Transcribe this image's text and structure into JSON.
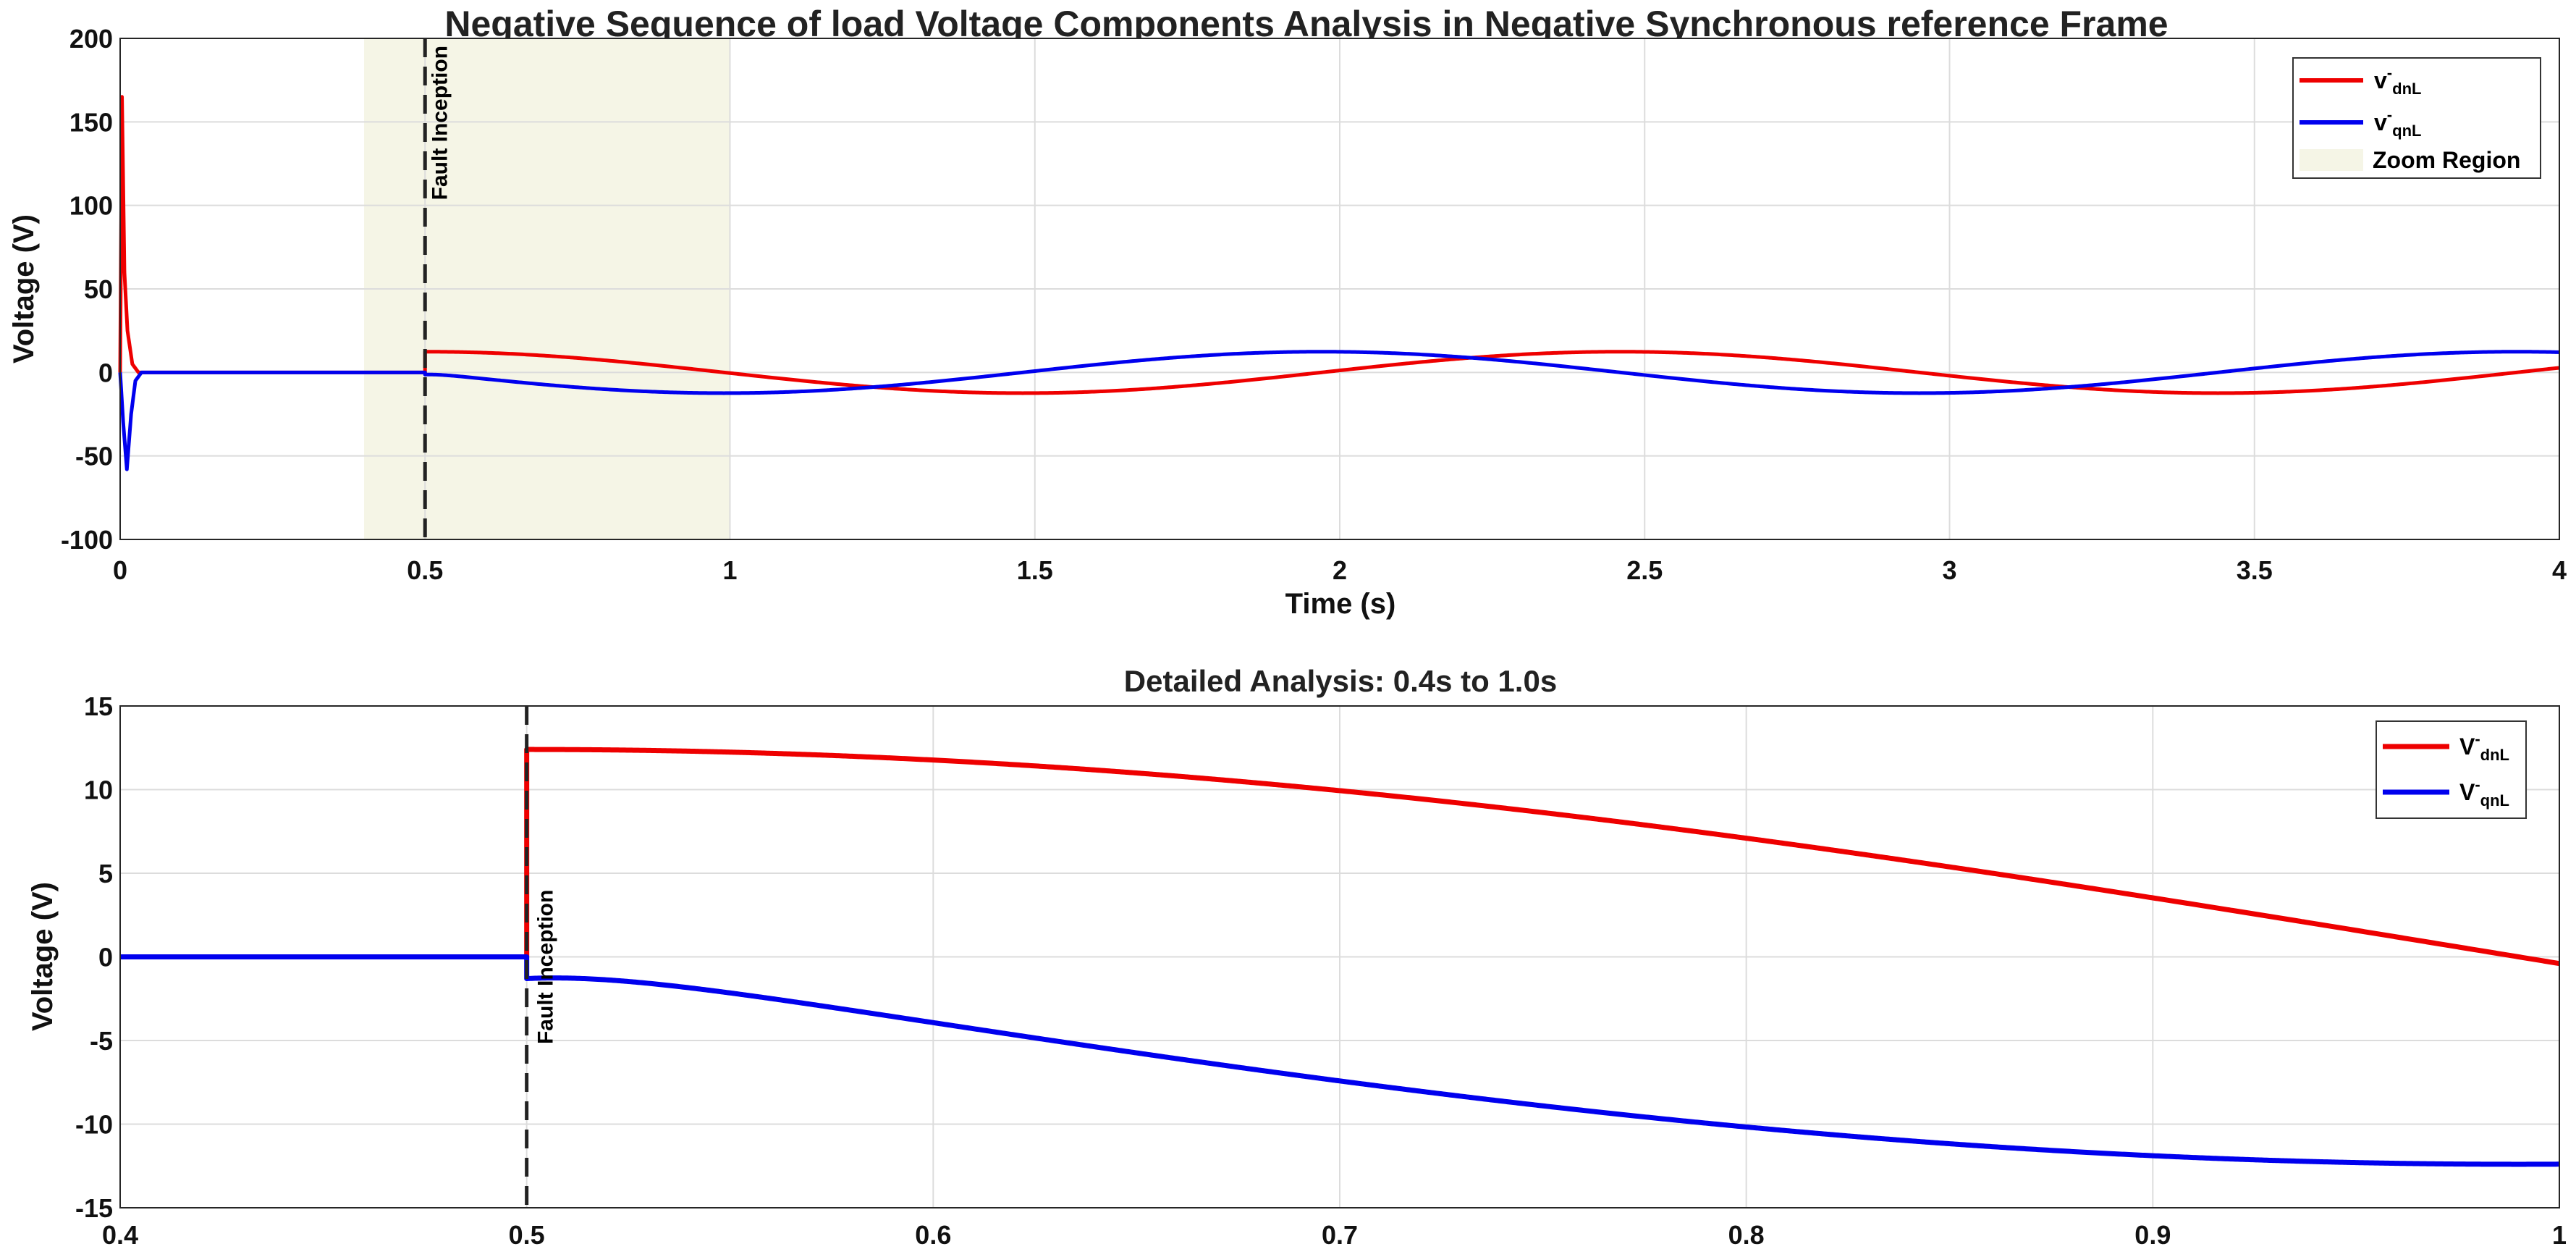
{
  "chart_data": [
    {
      "type": "line",
      "title": "Negative Sequence of load Voltage Components Analysis in Negative Synchronous reference Frame",
      "xlabel": "Time (s)",
      "ylabel": "Voltage (V)",
      "xlim": [
        0,
        4
      ],
      "ylim": [
        -100,
        200
      ],
      "xticks": [
        0,
        0.5,
        1,
        1.5,
        2,
        2.5,
        3,
        3.5,
        4
      ],
      "xtick_labels": [
        "0",
        "0.5",
        "1",
        "1.5",
        "2",
        "2.5",
        "3",
        "3.5",
        "4"
      ],
      "yticks": [
        -100,
        -50,
        0,
        50,
        100,
        150,
        200
      ],
      "ytick_labels": [
        "-100",
        "-50",
        "0",
        "50",
        "100",
        "150",
        "200"
      ],
      "grid": true,
      "legend_position": "top-right",
      "fault_time": 0.5,
      "fault_label": "Fault Inception",
      "zoom_region": [
        0.4,
        1.0
      ],
      "zoom_label": "Zoom Region",
      "steady_state": {
        "amplitude": 12.4,
        "period": 1.96,
        "fault_offset": -1.3
      },
      "series": [
        {
          "name": "v-dnL",
          "label_main": "v",
          "label_sup": "-",
          "label_sub": "dnL",
          "color": "#ee0000",
          "startup_transient": [
            [
              0,
              0
            ],
            [
              0.003,
              165
            ],
            [
              0.007,
              60
            ],
            [
              0.012,
              25
            ],
            [
              0.02,
              5
            ],
            [
              0.03,
              0
            ],
            [
              0.5,
              0
            ]
          ],
          "phase": 0.5,
          "func": "cos"
        },
        {
          "name": "v-qnL",
          "label_main": "v",
          "label_sup": "-",
          "label_sub": "qnL",
          "color": "#0000ee",
          "startup_transient": [
            [
              0,
              0
            ],
            [
              0.005,
              -30
            ],
            [
              0.011,
              -58
            ],
            [
              0.018,
              -25
            ],
            [
              0.025,
              -5
            ],
            [
              0.035,
              0
            ],
            [
              0.5,
              0
            ]
          ],
          "phase": 0.5,
          "func": "sin"
        }
      ]
    },
    {
      "type": "line",
      "title": "Detailed Analysis: 0.4s to 1.0s",
      "xlabel": "",
      "ylabel": "Voltage (V)",
      "xlim": [
        0.4,
        1.0
      ],
      "ylim": [
        -15,
        15
      ],
      "xticks": [
        0.4,
        0.5,
        0.6,
        0.7,
        0.8,
        0.9,
        1.0
      ],
      "xtick_labels": [
        "0.4",
        "0.5",
        "0.6",
        "0.7",
        "0.8",
        "0.9",
        "1"
      ],
      "yticks": [
        -15,
        -10,
        -5,
        0,
        5,
        10,
        15
      ],
      "ytick_labels": [
        "-15",
        "-10",
        "-5",
        "0",
        "5",
        "10",
        "15"
      ],
      "grid": true,
      "legend_position": "top-right",
      "fault_time": 0.5,
      "fault_label": "Fault Inception",
      "steady_state": {
        "amplitude": 12.4,
        "period": 1.96,
        "fault_offset": -1.3
      },
      "series": [
        {
          "name": "V-dnL",
          "label_main": "V",
          "label_sup": "-",
          "label_sub": "dnL",
          "color": "#ee0000",
          "phase": 0.5,
          "func": "cos"
        },
        {
          "name": "V-qnL",
          "label_main": "V",
          "label_sup": "-",
          "label_sub": "qnL",
          "color": "#0000ee",
          "phase": 0.5,
          "func": "sin"
        }
      ]
    }
  ]
}
